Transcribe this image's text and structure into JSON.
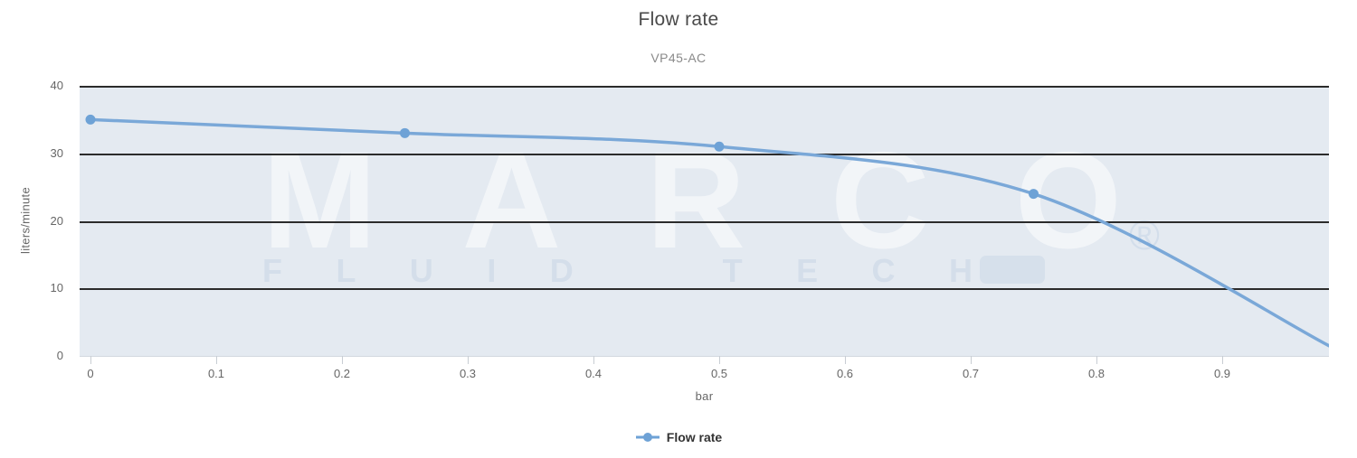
{
  "title": "Flow rate",
  "subtitle": "VP45-AC",
  "watermark": {
    "line1": "MARCO",
    "line2": "FLUID TECH",
    "registered": "®"
  },
  "axes": {
    "x_title": "bar",
    "y_title": "liters/minute"
  },
  "legend": {
    "items": [
      {
        "label": "Flow rate",
        "color": "#6ea2d6"
      }
    ]
  },
  "chart_data": {
    "type": "line",
    "title": "Flow rate",
    "subtitle": "VP45-AC",
    "xlabel": "bar",
    "ylabel": "liters/minute",
    "xlim": [
      0,
      0.985
    ],
    "ylim": [
      0,
      40
    ],
    "x_ticks": [
      0,
      0.1,
      0.2,
      0.3,
      0.4,
      0.5,
      0.6,
      0.7,
      0.8,
      0.9
    ],
    "x_tick_labels": [
      "0",
      "0.1",
      "0.2",
      "0.3",
      "0.4",
      "0.5",
      "0.6",
      "0.7",
      "0.8",
      "0.9"
    ],
    "y_ticks": [
      0,
      10,
      20,
      30,
      40
    ],
    "y_tick_labels": [
      "0",
      "10",
      "20",
      "30",
      "40"
    ],
    "grid": "horizontal-black",
    "legend_position": "bottom-center",
    "series": [
      {
        "name": "Flow rate",
        "color": "#7aa8d8",
        "marker_color": "#6ea2d6",
        "points": [
          [
            0,
            35
          ],
          [
            0.25,
            33
          ],
          [
            0.5,
            31
          ],
          [
            0.75,
            24
          ],
          [
            0.985,
            1.5
          ]
        ],
        "marker_points": [
          [
            0,
            35
          ],
          [
            0.25,
            33
          ],
          [
            0.5,
            31
          ],
          [
            0.75,
            24
          ]
        ]
      }
    ]
  },
  "colors": {
    "plot_bg": "#e4eaf1",
    "gridline": "#2b2b2b",
    "tick_label": "#666666",
    "title": "#4a4a4a",
    "subtitle": "#8a8a8a",
    "legend_text": "#333333"
  }
}
